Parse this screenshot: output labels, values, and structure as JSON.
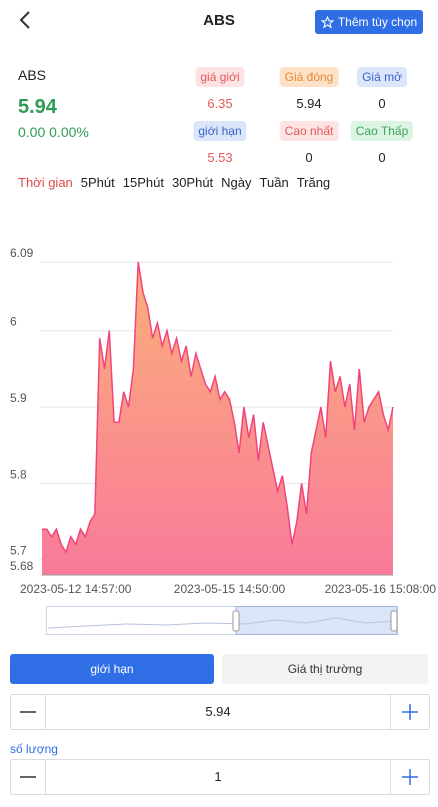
{
  "header": {
    "title": "ABS",
    "button": "Thêm tùy chọn"
  },
  "quote": {
    "symbol": "ABS",
    "price": "5.94",
    "change": "0.00 0.00%"
  },
  "stats": [
    [
      "giá giới",
      "6.35"
    ],
    [
      "Giá đóng",
      "5.94"
    ],
    [
      "Giá mở",
      "0"
    ],
    [
      "giới hạn",
      "5.53"
    ],
    [
      "Cao nhất",
      "0"
    ],
    [
      "Cao Thấp",
      "0"
    ]
  ],
  "periods": [
    "Thời gian",
    "5Phút",
    "15Phút",
    "30Phút",
    "Ngày",
    "Tuần",
    "Trăng"
  ],
  "chart_data": {
    "type": "line",
    "color": "#f0457a",
    "categories": [
      "2023-05-12 14:57:00",
      null,
      null,
      null,
      null,
      null,
      null,
      null,
      null,
      null,
      null,
      null,
      null,
      null,
      null,
      null,
      null,
      null,
      null,
      null,
      null,
      null,
      null,
      null,
      null,
      null,
      null,
      null,
      null,
      null,
      null,
      null,
      null,
      null,
      null,
      null,
      null,
      null,
      null,
      "2023-05-15 14:50:00",
      null,
      null,
      null,
      null,
      null,
      null,
      null,
      null,
      null,
      null,
      null,
      null,
      null,
      null,
      null,
      null,
      null,
      null,
      null,
      null,
      null,
      null,
      null,
      null,
      null,
      null,
      null,
      null,
      null,
      null,
      null,
      null,
      null,
      "2023-05-16 15:08:00"
    ],
    "values": [
      5.74,
      5.74,
      5.73,
      5.74,
      5.72,
      5.71,
      5.73,
      5.72,
      5.74,
      5.73,
      5.75,
      5.76,
      5.99,
      5.95,
      6.0,
      5.88,
      5.88,
      5.92,
      5.9,
      5.95,
      6.09,
      6.05,
      6.03,
      5.99,
      6.01,
      5.98,
      6,
      5.97,
      5.99,
      5.96,
      5.98,
      5.94,
      5.97,
      5.95,
      5.93,
      5.92,
      5.94,
      5.91,
      5.92,
      5.91,
      5.88,
      5.84,
      5.9,
      5.86,
      5.89,
      5.83,
      5.88,
      5.85,
      5.82,
      5.79,
      5.81,
      5.77,
      5.72,
      5.75,
      5.8,
      5.76,
      5.84,
      5.87,
      5.9,
      5.86,
      5.96,
      5.92,
      5.94,
      5.9,
      5.93,
      5.87,
      5.95,
      5.88,
      5.9,
      5.91,
      5.92,
      5.89,
      5.87,
      5.9
    ],
    "ylim": [
      5.68,
      6.09
    ],
    "yticks": [
      5.68,
      5.7,
      5.8,
      5.9,
      6,
      6.09
    ],
    "grid": true
  },
  "order": {
    "tabs": [
      "giới hạn",
      "Giá thị trường"
    ],
    "price": "5.94",
    "qty_label": "số lượng",
    "qty": "1"
  }
}
